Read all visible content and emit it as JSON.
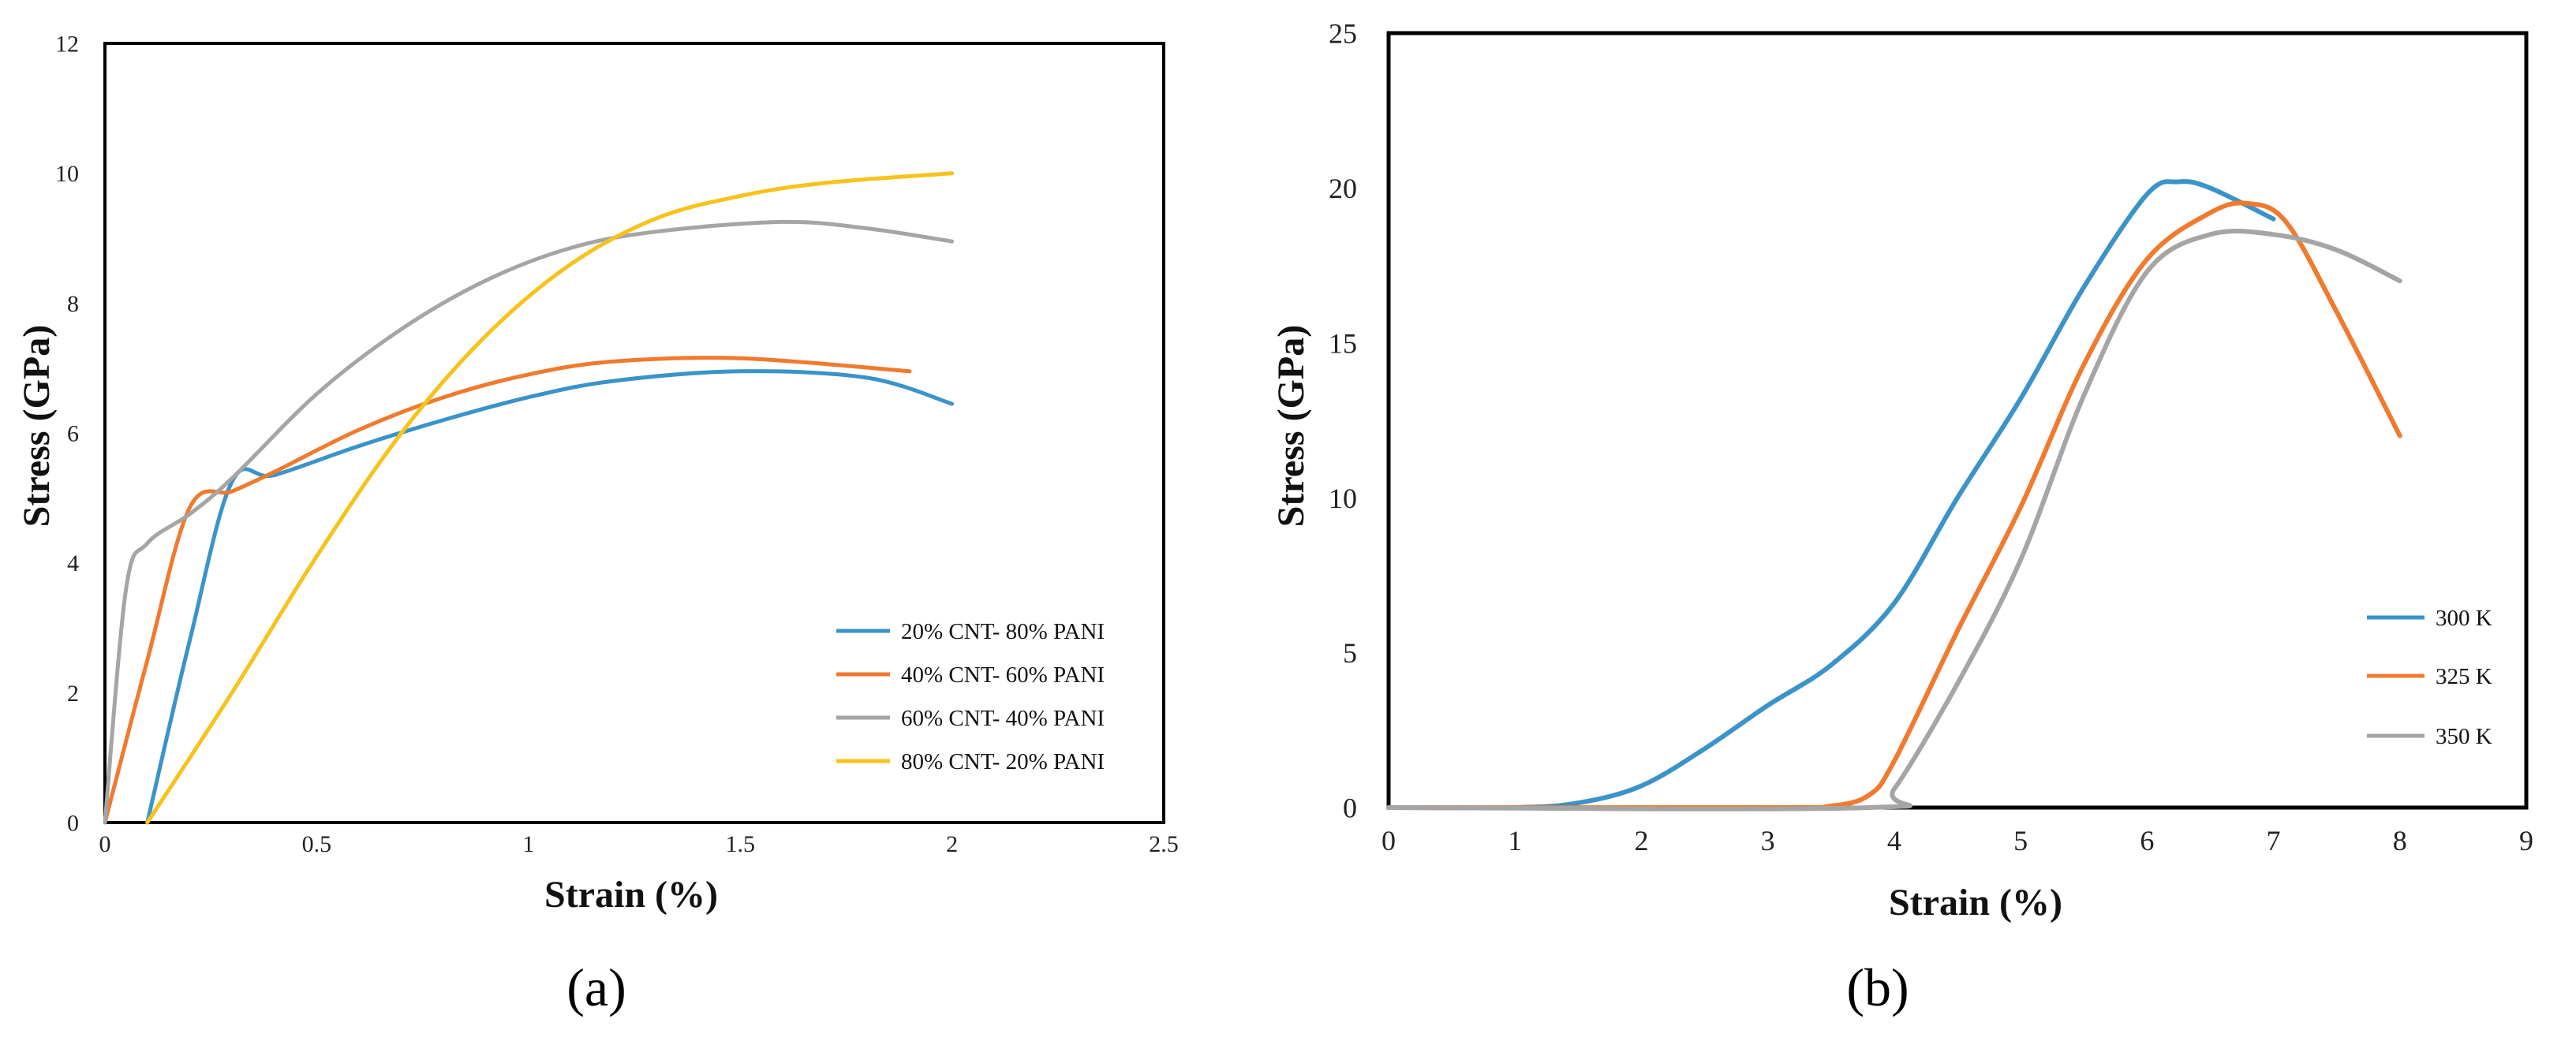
{
  "chart_data": [
    {
      "type": "line",
      "panel_label": "(a)",
      "xlabel": "Strain (%)",
      "ylabel": "Stress (GPa)",
      "xlim": [
        0,
        2.5
      ],
      "ylim": [
        0,
        12
      ],
      "xticks": [
        "0",
        "0.5",
        "1",
        "1.5",
        "2",
        "2.5"
      ],
      "yticks": [
        "0",
        "2",
        "4",
        "6",
        "8",
        "10",
        "12"
      ],
      "legend_position": "bottom-right",
      "series": [
        {
          "name": "20% CNT- 80% PANI",
          "color": "#3a93c9",
          "x": [
            0.1,
            0.2,
            0.3,
            0.4,
            0.6,
            0.8,
            1.0,
            1.2,
            1.5,
            1.8,
            2.0
          ],
          "y": [
            0,
            2.8,
            5.25,
            5.35,
            5.8,
            6.2,
            6.55,
            6.8,
            6.95,
            6.85,
            6.45
          ]
        },
        {
          "name": "40% CNT- 60% PANI",
          "color": "#f07a2d",
          "x": [
            0,
            0.1,
            0.2,
            0.3,
            0.4,
            0.6,
            0.8,
            1.0,
            1.2,
            1.5,
            1.9
          ],
          "y": [
            0,
            2.5,
            4.85,
            5.1,
            5.4,
            6.05,
            6.55,
            6.9,
            7.1,
            7.15,
            6.95
          ]
        },
        {
          "name": "60% CNT- 40% PANI",
          "color": "#a5a5a5",
          "x": [
            0,
            0.05,
            0.1,
            0.2,
            0.3,
            0.5,
            0.7,
            0.9,
            1.1,
            1.3,
            1.6,
            1.8,
            2.0
          ],
          "y": [
            0,
            3.6,
            4.3,
            4.75,
            5.3,
            6.6,
            7.6,
            8.35,
            8.85,
            9.1,
            9.25,
            9.15,
            8.95
          ]
        },
        {
          "name": "80% CNT- 20% PANI",
          "color": "#f7c21c",
          "x": [
            0.1,
            0.3,
            0.5,
            0.7,
            0.9,
            1.1,
            1.3,
            1.5,
            1.7,
            2.0
          ],
          "y": [
            0,
            2.0,
            4.1,
            6.0,
            7.5,
            8.6,
            9.3,
            9.65,
            9.85,
            10.0
          ]
        }
      ]
    },
    {
      "type": "line",
      "panel_label": "(b)",
      "xlabel": "Strain (%)",
      "ylabel": "Stress (GPa)",
      "xlim": [
        0,
        9
      ],
      "ylim": [
        0,
        25
      ],
      "xticks": [
        "0",
        "1",
        "2",
        "3",
        "4",
        "5",
        "6",
        "7",
        "8",
        "9"
      ],
      "yticks": [
        "0",
        "5",
        "10",
        "15",
        "20",
        "25"
      ],
      "legend_position": "right",
      "series": [
        {
          "name": "300 K",
          "color": "#3a93c9",
          "x": [
            0,
            1,
            1.5,
            2,
            2.5,
            3,
            3.5,
            4,
            4.5,
            5,
            5.5,
            6,
            6.25,
            6.5,
            7
          ],
          "y": [
            0,
            0,
            0.15,
            0.7,
            1.9,
            3.3,
            4.6,
            6.6,
            10.0,
            13.2,
            16.8,
            19.8,
            20.2,
            20.0,
            19.0
          ]
        },
        {
          "name": "325 K",
          "color": "#f07a2d",
          "x": [
            0,
            3,
            3.5,
            3.8,
            4,
            4.5,
            5,
            5.5,
            6,
            6.5,
            6.8,
            7.1,
            7.5,
            8
          ],
          "y": [
            0,
            0,
            0.05,
            0.4,
            1.5,
            5.7,
            9.7,
            14.3,
            17.7,
            19.2,
            19.5,
            18.9,
            16.0,
            12.0
          ]
        },
        {
          "name": "350 K",
          "color": "#a5a5a5",
          "x": [
            0,
            3.8,
            4,
            4.5,
            5,
            5.5,
            6,
            6.5,
            7,
            7.5,
            8
          ],
          "y": [
            0,
            0,
            0.6,
            4.0,
            8.0,
            13.3,
            17.3,
            18.5,
            18.5,
            18.0,
            17.0
          ]
        }
      ]
    }
  ]
}
